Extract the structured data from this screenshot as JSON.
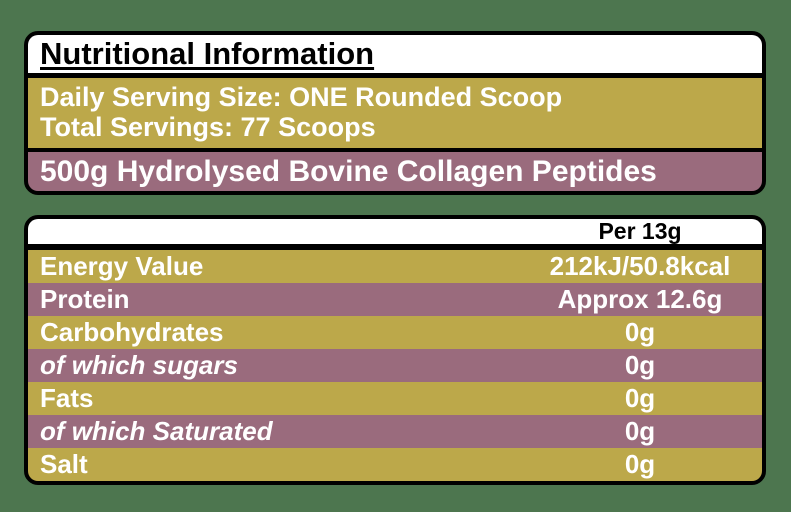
{
  "colors": {
    "background": "#4d764f",
    "olive": "#bca84a",
    "mauve": "#9a6b7d",
    "border": "#000000",
    "panel_bg": "#ffffff",
    "text_on_color": "#ffffff",
    "text_dark": "#000000"
  },
  "info_panel": {
    "title": "Nutritional Information",
    "serving_line_1": "Daily Serving Size: ONE Rounded Scoop",
    "serving_line_2": "Total Servings: 77 Scoops",
    "product_description": "500g Hydrolysed Bovine Collagen Peptides"
  },
  "nutrition_table": {
    "column_header": "Per 13g",
    "rows": [
      {
        "label": "Energy Value",
        "value": "212kJ/50.8kcal",
        "italic": false
      },
      {
        "label": "Protein",
        "value": "Approx 12.6g",
        "italic": false
      },
      {
        "label": "Carbohydrates",
        "value": "0g",
        "italic": false
      },
      {
        "label": "of which sugars",
        "value": "0g",
        "italic": true
      },
      {
        "label": "Fats",
        "value": "0g",
        "italic": false
      },
      {
        "label": "of which Saturated",
        "value": "0g",
        "italic": true
      },
      {
        "label": "Salt",
        "value": "0g",
        "italic": false
      }
    ]
  }
}
